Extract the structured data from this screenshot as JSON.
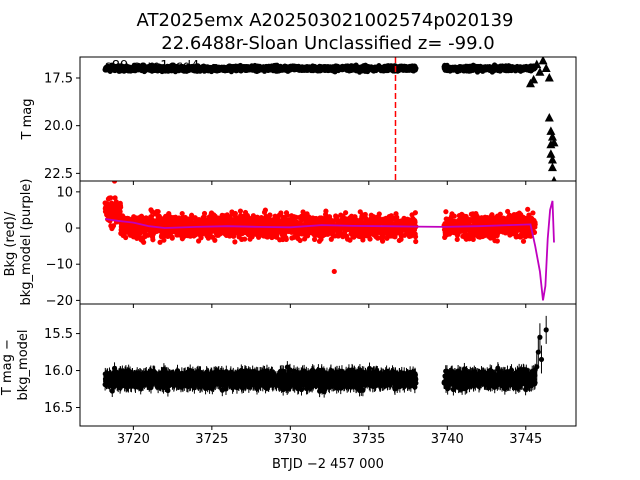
{
  "figure": {
    "title_line1": "AT2025emx  A202503021002574p020139",
    "title_line2": "22.6488r-Sloan Unclassified z= -99.0",
    "annotation": "s89 cam1ccd4",
    "xlabel": "BTJD −2 457 000"
  },
  "chart_data": [
    {
      "type": "scatter",
      "panel": "top",
      "ylabel": "T mag",
      "ylim": [
        22.9,
        16.4
      ],
      "y_inverted": true,
      "xlim": [
        3716.6,
        3748.2
      ],
      "x_ticks": [
        3720,
        3725,
        3730,
        3735,
        3740,
        3745
      ],
      "y_ticks": [
        17.5,
        20.0,
        22.5
      ],
      "y_tick_labels": [
        "17.5",
        "20.0",
        "22.5"
      ],
      "vline_x": 3736.7,
      "vline_color": "#ff0000",
      "series": [
        {
          "marker": "circle",
          "color": "#000000",
          "segments": [
            {
              "x_start": 3718.2,
              "x_end": 3738.0,
              "y_center": 17.0,
              "scatter": 0.12
            },
            {
              "x_start": 3739.8,
              "x_end": 3745.6,
              "y_center": 17.0,
              "scatter": 0.12
            }
          ]
        },
        {
          "marker": "triangle",
          "color": "#000000",
          "x": [
            3745.3,
            3745.5,
            3745.7,
            3745.9,
            3746.1,
            3746.3,
            3746.5,
            3746.5,
            3746.6,
            3746.6,
            3746.6,
            3746.7,
            3746.7,
            3746.7,
            3746.8,
            3746.8
          ],
          "y": [
            17.8,
            17.6,
            16.8,
            17.2,
            16.6,
            17.0,
            17.5,
            19.6,
            21.0,
            20.3,
            21.5,
            20.6,
            21.8,
            22.2,
            20.9,
            22.9
          ]
        }
      ]
    },
    {
      "type": "scatter",
      "panel": "middle",
      "ylabel": "Bkg (red)/\nbkg_model (purple)",
      "ylim": [
        -21,
        13
      ],
      "xlim": [
        3716.6,
        3748.2
      ],
      "y_ticks": [
        10,
        0,
        -10,
        -20
      ],
      "y_tick_labels": [
        "10",
        "0",
        "−10",
        "−20"
      ],
      "series": [
        {
          "marker": "circle",
          "color": "#ff0000",
          "segments": [
            {
              "x_start": 3718.2,
              "x_end": 3738.0,
              "y_center": 0.5,
              "scatter": 3.0
            },
            {
              "x_start": 3739.8,
              "x_end": 3745.6,
              "y_center": 0.5,
              "scatter": 3.0
            }
          ],
          "extremes": {
            "max": 13,
            "min": -12
          }
        },
        {
          "marker": "line",
          "color": "#bf00bf",
          "x": [
            3718.2,
            3719,
            3720,
            3721,
            3722,
            3724,
            3726,
            3728,
            3730,
            3732,
            3734,
            3736,
            3738,
            3739.8,
            3742,
            3744,
            3745.3,
            3745.6,
            3745.9,
            3746.1,
            3746.25,
            3746.4,
            3746.55,
            3746.7,
            3746.8
          ],
          "y": [
            2.5,
            2.0,
            1.5,
            0.5,
            0.0,
            0.3,
            0.5,
            0.3,
            0.2,
            0.8,
            0.6,
            0.5,
            0.4,
            0.3,
            0.5,
            0.8,
            1.0,
            -5.0,
            -12.0,
            -20.0,
            -16.0,
            -3.0,
            5.0,
            7.5,
            -4.0
          ]
        }
      ]
    },
    {
      "type": "scatter",
      "panel": "bottom",
      "ylabel": "T mag −\nbkg_model",
      "ylim": [
        16.75,
        15.1
      ],
      "y_inverted": true,
      "xlim": [
        3716.6,
        3748.2
      ],
      "x_ticks": [
        3720,
        3725,
        3730,
        3735,
        3740,
        3745
      ],
      "x_tick_labels": [
        "3720",
        "3725",
        "3730",
        "3735",
        "3740",
        "3745"
      ],
      "y_ticks": [
        15.5,
        16.0,
        16.5
      ],
      "y_tick_labels": [
        "15.5",
        "16.0",
        "16.5"
      ],
      "series": [
        {
          "marker": "circle_errorbar",
          "color": "#000000",
          "segments": [
            {
              "x_start": 3718.2,
              "x_end": 3738.0,
              "y_center": 16.12,
              "scatter": 0.1
            },
            {
              "x_start": 3739.8,
              "x_end": 3745.6,
              "y_center": 16.12,
              "scatter": 0.1
            }
          ],
          "outliers": {
            "x": [
              3745.7,
              3745.8,
              3745.9,
              3746.0,
              3746.3
            ],
            "y": [
              15.95,
              15.75,
              15.55,
              15.85,
              15.45
            ]
          }
        }
      ]
    }
  ]
}
